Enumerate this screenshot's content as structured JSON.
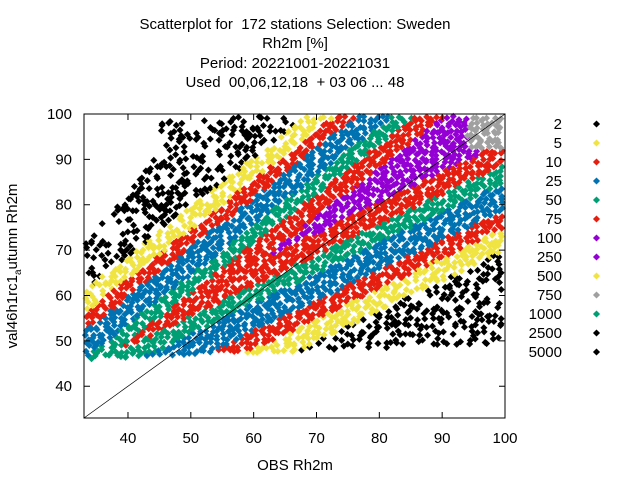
{
  "title_lines": [
    "Scatterplot for  172 stations Selection: Sweden",
    "Rh2m [%]",
    "Period: 20221001-20221031",
    "Used  00,06,12,18  + 03 06 ... 48"
  ],
  "chart_data": {
    "type": "scatter",
    "title": "Scatterplot for  172 stations Selection: Sweden",
    "xlabel": "OBS Rh2m",
    "ylabel_main": "val46h1rc1",
    "ylabel_sub": "a",
    "ylabel_tail": "utumn Rh2m",
    "xlim": [
      33,
      100
    ],
    "ylim": [
      33,
      100
    ],
    "xticks": [
      40,
      50,
      60,
      70,
      80,
      90,
      100
    ],
    "yticks": [
      40,
      50,
      60,
      70,
      80,
      90,
      100
    ],
    "diagonal_line": true,
    "legend_position": "right",
    "density_legend": [
      {
        "label": "2",
        "color": "#000000"
      },
      {
        "label": "5",
        "color": "#f0e442"
      },
      {
        "label": "10",
        "color": "#e51e10"
      },
      {
        "label": "25",
        "color": "#0072b2"
      },
      {
        "label": "50",
        "color": "#009e73"
      },
      {
        "label": "75",
        "color": "#e51e10"
      },
      {
        "label": "100",
        "color": "#9400d3"
      },
      {
        "label": "250",
        "color": "#9400d3"
      },
      {
        "label": "500",
        "color": "#f0e442"
      },
      {
        "label": "750",
        "color": "#a0a0a0"
      },
      {
        "label": "1000",
        "color": "#009e73"
      },
      {
        "label": "2500",
        "color": "#000000"
      },
      {
        "label": "5000",
        "color": "#000000"
      }
    ]
  }
}
